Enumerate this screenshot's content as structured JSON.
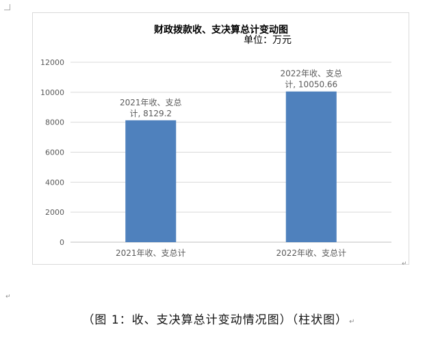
{
  "chart_data": {
    "type": "bar",
    "title": "财政拨款收、支决算总计变动图",
    "subtitle": "单位：万元",
    "categories": [
      "2021年收、支总计",
      "2022年收、支总计"
    ],
    "values": [
      8129.2,
      10050.66
    ],
    "data_labels": [
      [
        "2021年收、支总",
        "计, 8129.2"
      ],
      [
        "2022年收、支总",
        "计, 10050.66"
      ]
    ],
    "ylim": [
      0,
      12000
    ],
    "yticks": [
      0,
      2000,
      4000,
      6000,
      8000,
      10000,
      12000
    ],
    "ytick_labels": [
      "0",
      "2000",
      "4000",
      "6000",
      "8000",
      "10000",
      "12000"
    ],
    "grid": true,
    "legend": "none",
    "colors": {
      "bar": "#4f81bd",
      "grid": "#d9d9d9",
      "axis": "#bfbfbf",
      "text": "#595959",
      "title": "#000000"
    }
  },
  "caption": "（图 1：收、支决算总计变动情况图）（柱状图）",
  "para_mark": "↵"
}
